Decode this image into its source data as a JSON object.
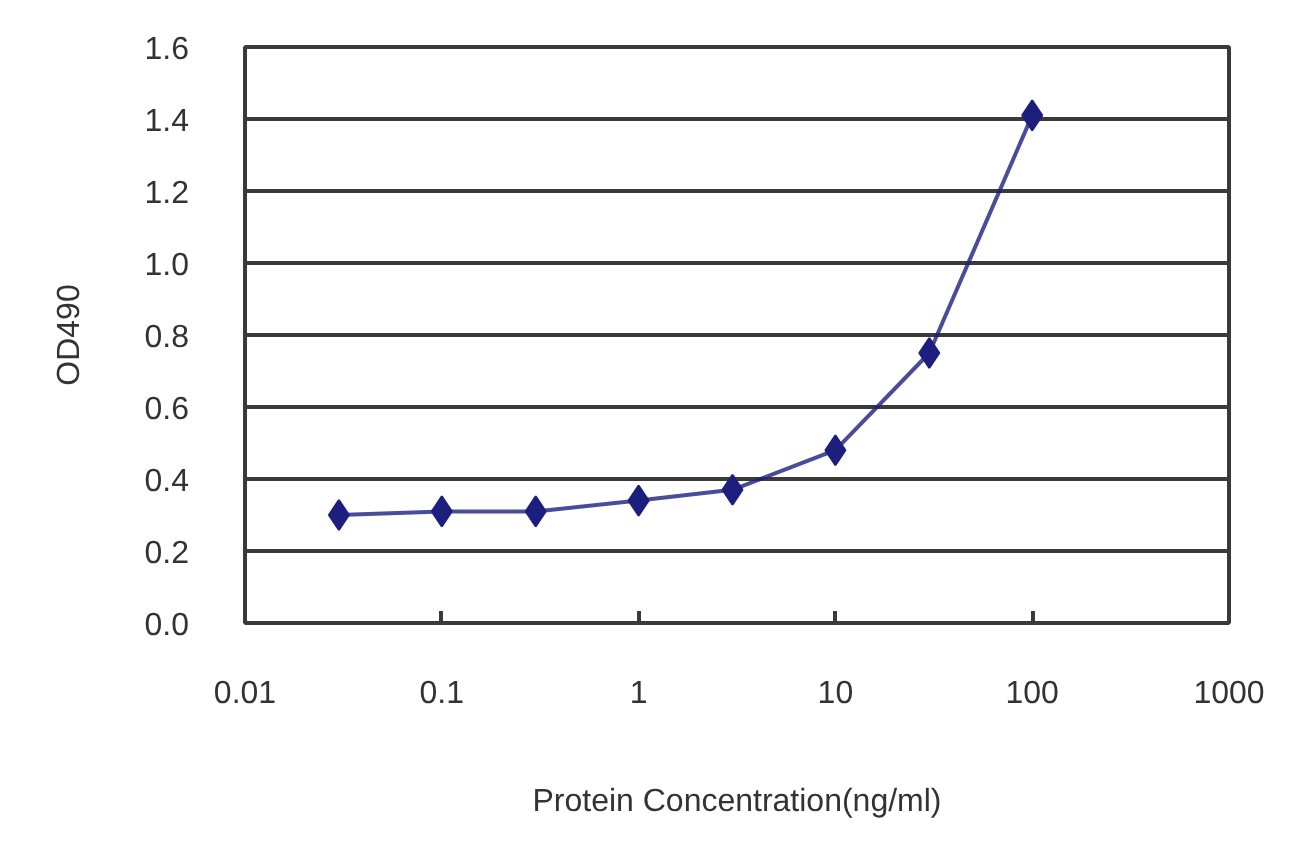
{
  "chart_data": {
    "type": "line",
    "xlabel": "Protein Concentration(ng/ml)",
    "ylabel": "OD490",
    "x": [
      0.03,
      0.1,
      0.3,
      1,
      3,
      10,
      30,
      100
    ],
    "series": [
      {
        "color": "#1c1f7e",
        "values": [
          0.3,
          0.31,
          0.31,
          0.34,
          0.37,
          0.48,
          0.75,
          1.41
        ]
      }
    ],
    "log": "x",
    "xlim": [
      0.01,
      1000
    ],
    "ylim": [
      0,
      1.6
    ],
    "xticks": [
      0.01,
      0.1,
      1,
      10,
      100,
      1000
    ],
    "yticks": [
      {
        "value": 0,
        "label": "0.0"
      },
      0.2,
      0.4,
      0.6,
      0.8,
      {
        "value": 1,
        "label": "1.0"
      },
      1.2,
      1.4,
      1.6
    ],
    "grid": "y",
    "marker": "diamond",
    "line_style": "solid"
  }
}
